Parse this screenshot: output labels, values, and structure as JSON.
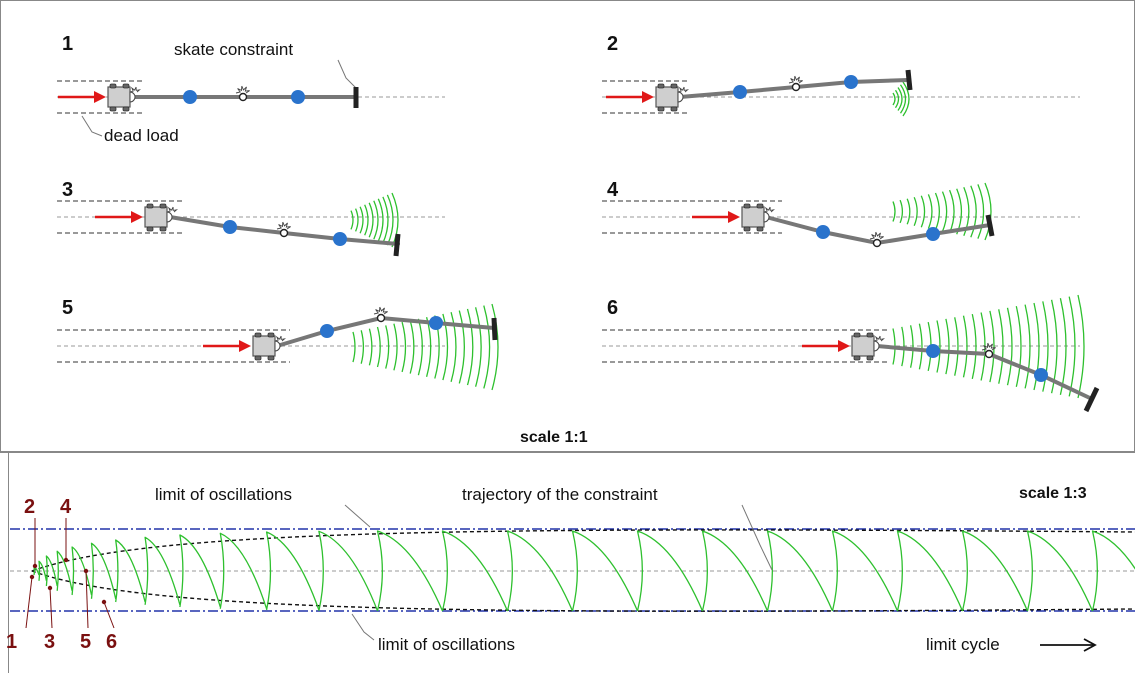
{
  "top_panel": {
    "panels": [
      {
        "number": "1"
      },
      {
        "number": "2"
      },
      {
        "number": "3"
      },
      {
        "number": "4"
      },
      {
        "number": "5"
      },
      {
        "number": "6"
      }
    ],
    "label_skate_constraint": "skate constraint",
    "label_dead_load": "dead load",
    "scale_label": "scale 1:1"
  },
  "bottom_panel": {
    "label_limit_top": "limit of oscillations",
    "label_limit_bottom": "limit of oscillations",
    "label_trajectory": "trajectory of the constraint",
    "scale_label": "scale 1:3",
    "label_limit_cycle": "limit cycle",
    "steps_top": [
      "2",
      "4"
    ],
    "steps_bottom": [
      "1",
      "3",
      "5",
      "6"
    ]
  },
  "colors": {
    "force_arrow": "#e01818",
    "mass": "#2a73cc",
    "trajectory": "#2ec02e",
    "limit_lines": "#2233aa",
    "step_markers": "#7a1010",
    "rod": "#777777",
    "cart": "#cfcfcf"
  }
}
